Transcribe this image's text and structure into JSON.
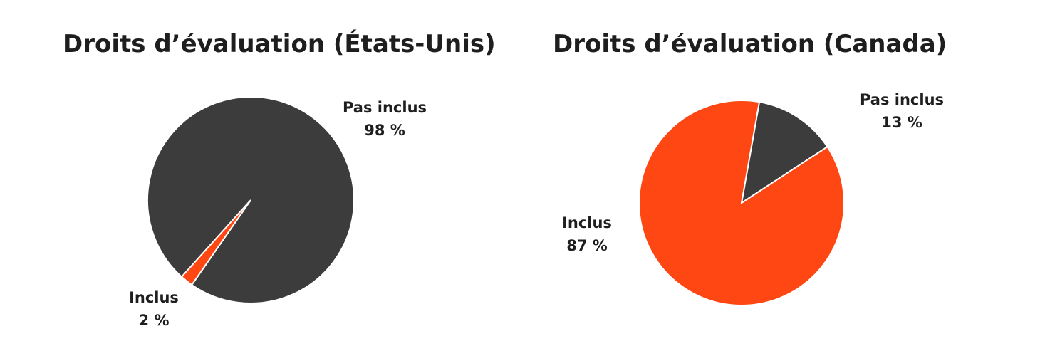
{
  "chart_data": [
    {
      "type": "pie",
      "title": "Droits d’évaluation (États-Unis)",
      "categories": [
        "Pas inclus",
        "Inclus"
      ],
      "values": [
        98,
        2
      ],
      "value_labels": [
        "98 %",
        "2 %"
      ],
      "colors": [
        "#3c3c3c",
        "#ff4713"
      ]
    },
    {
      "type": "pie",
      "title": "Droits d’évaluation (Canada)",
      "categories": [
        "Pas inclus",
        "Inclus"
      ],
      "values": [
        13,
        87
      ],
      "value_labels": [
        "13 %",
        "87 %"
      ],
      "colors": [
        "#3c3c3c",
        "#ff4713"
      ]
    }
  ]
}
